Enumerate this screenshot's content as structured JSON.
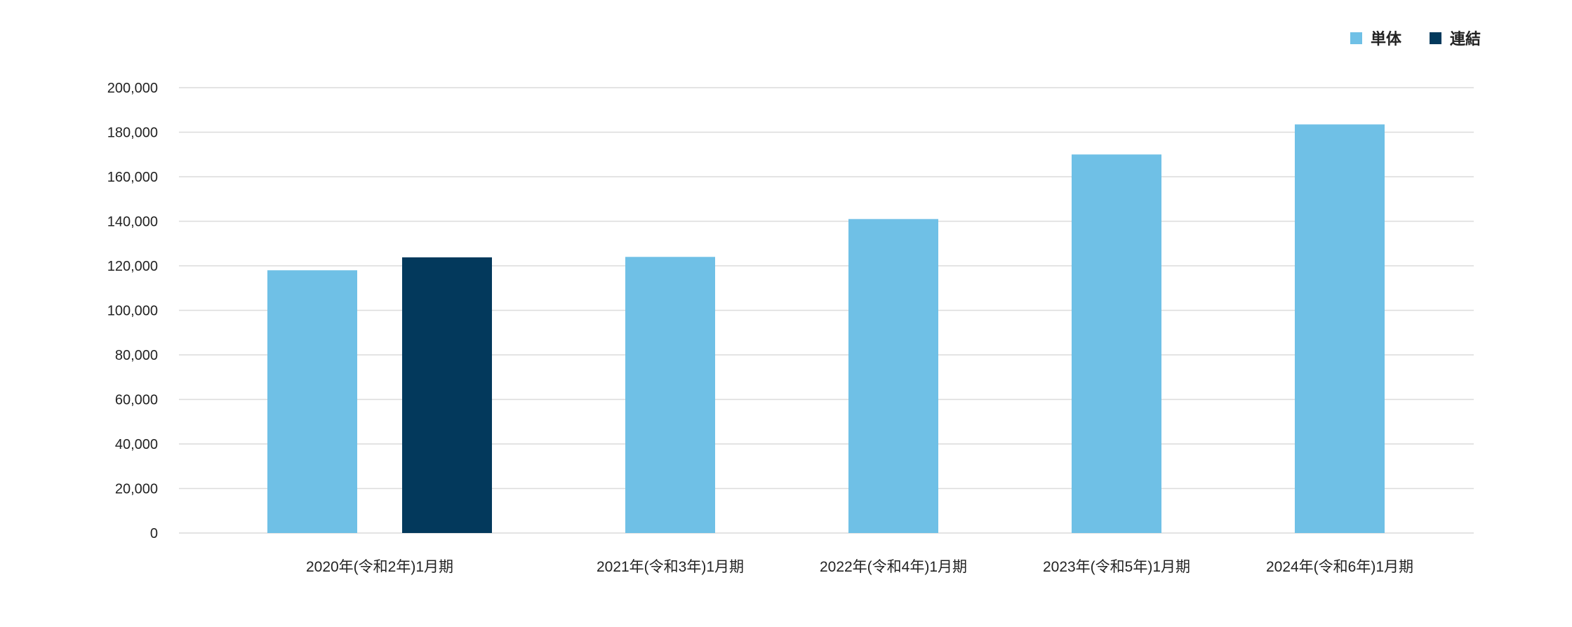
{
  "colors": {
    "standalone": "#6FC0E6",
    "consolidated": "#03395C",
    "grid": "#DCDCDC",
    "text": "#222222"
  },
  "legend": {
    "items": [
      {
        "label": "単体",
        "color": "#6FC0E6"
      },
      {
        "label": "連結",
        "color": "#03395C"
      }
    ],
    "placement": "top-right"
  },
  "chart_data": {
    "type": "bar",
    "categories": [
      "2020年(令和2年)1月期",
      "2021年(令和3年)1月期",
      "2022年(令和4年)1月期",
      "2023年(令和5年)1月期",
      "2024年(令和6年)1月期"
    ],
    "series": [
      {
        "name": "単体",
        "values": [
          118000,
          124000,
          141000,
          170000,
          183500
        ]
      },
      {
        "name": "連結",
        "values": [
          123800,
          null,
          null,
          null,
          null
        ]
      }
    ],
    "yticks": [
      "0",
      "20,000",
      "40,000",
      "60,000",
      "80,000",
      "100,000",
      "120,000",
      "140,000",
      "160,000",
      "180,000",
      "200,000"
    ],
    "ylim": [
      0,
      200000
    ],
    "grid": true,
    "title": "",
    "xlabel": "",
    "ylabel": ""
  }
}
